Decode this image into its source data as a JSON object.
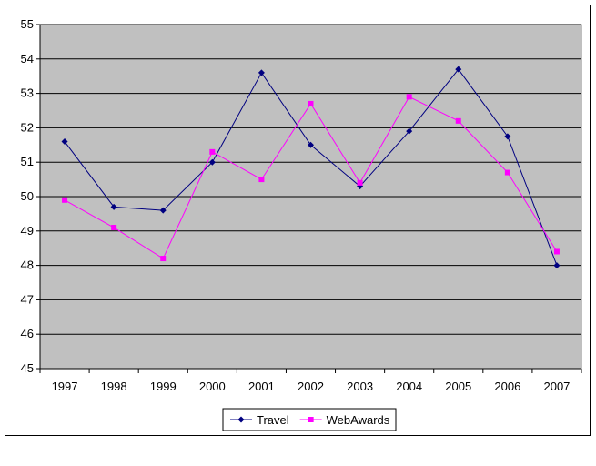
{
  "chart_data": {
    "type": "line",
    "title": "",
    "xlabel": "",
    "ylabel": "",
    "categories": [
      "1997",
      "1998",
      "1999",
      "2000",
      "2001",
      "2002",
      "2003",
      "2004",
      "2005",
      "2006",
      "2007"
    ],
    "ylim": [
      45,
      55
    ],
    "yticks": [
      45,
      46,
      47,
      48,
      49,
      50,
      51,
      52,
      53,
      54,
      55
    ],
    "grid": true,
    "plot_background": "#C0C0C0",
    "legend_position": "bottom",
    "series": [
      {
        "name": "Travel",
        "color": "#000080",
        "marker": "diamond",
        "values": [
          51.6,
          49.7,
          49.6,
          51.0,
          53.6,
          51.5,
          50.3,
          51.9,
          53.7,
          51.75,
          48.0
        ]
      },
      {
        "name": "WebAwards",
        "color": "#FF00FF",
        "marker": "square",
        "values": [
          49.9,
          49.1,
          48.2,
          51.3,
          50.5,
          52.7,
          50.4,
          52.9,
          52.2,
          50.7,
          48.4
        ]
      }
    ]
  }
}
